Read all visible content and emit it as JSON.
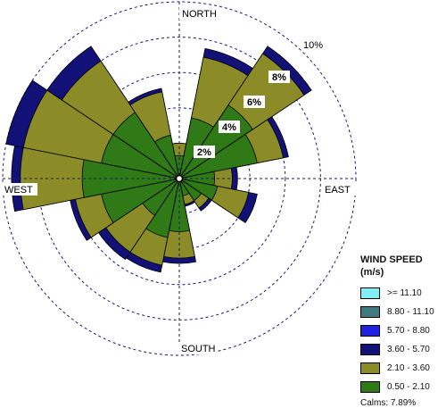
{
  "chart_data": {
    "type": "windrose",
    "ring_labels": [
      "2%",
      "4%",
      "6%",
      "8%",
      "10%"
    ],
    "ring_values": [
      2,
      4,
      6,
      8,
      10
    ],
    "direction_labels": {
      "north": "NORTH",
      "east": "EAST",
      "south": "SOUTH",
      "west": "WEST"
    },
    "legend": {
      "title": "WIND SPEED",
      "units": "(m/s)",
      "classes": [
        {
          "label": ">= 11.10",
          "color": "#7ff0f5"
        },
        {
          "label": "8.80 - 11.10",
          "color": "#3e7a7e"
        },
        {
          "label": "5.70 - 8.80",
          "color": "#2020e0"
        },
        {
          "label": "3.60 - 5.70",
          "color": "#111177"
        },
        {
          "label": "2.10 - 3.60",
          "color": "#8b8b28"
        },
        {
          "label": "0.50 - 2.10",
          "color": "#2f7a16"
        }
      ]
    },
    "calms": "Calms: 7.89%",
    "sector_width_deg": 22.5,
    "sectors": [
      {
        "dir": "N",
        "angle": 0,
        "cum": [
          1.3,
          2.0,
          2.0
        ]
      },
      {
        "dir": "NNE",
        "angle": 22.5,
        "cum": [
          3.5,
          7.0,
          7.5
        ]
      },
      {
        "dir": "NE",
        "angle": 45,
        "cum": [
          5.0,
          8.5,
          9.0
        ]
      },
      {
        "dir": "ENE",
        "angle": 67.5,
        "cum": [
          4.5,
          6.0,
          6.3
        ]
      },
      {
        "dir": "E",
        "angle": 90,
        "cum": [
          2.0,
          3.0,
          3.3
        ]
      },
      {
        "dir": "ESE",
        "angle": 112.5,
        "cum": [
          2.2,
          4.0,
          4.5
        ]
      },
      {
        "dir": "SE",
        "angle": 135,
        "cum": [
          1.5,
          2.0,
          2.2
        ]
      },
      {
        "dir": "SSE",
        "angle": 157.5,
        "cum": [
          1.0,
          1.5,
          1.6
        ]
      },
      {
        "dir": "S",
        "angle": 180,
        "cum": [
          3.0,
          4.5,
          4.8
        ]
      },
      {
        "dir": "SSW",
        "angle": 202.5,
        "cum": [
          3.4,
          5.0,
          5.4
        ]
      },
      {
        "dir": "SW",
        "angle": 225,
        "cum": [
          2.5,
          5.0,
          5.5
        ]
      },
      {
        "dir": "WSW",
        "angle": 247.5,
        "cum": [
          4.5,
          6.0,
          6.3
        ]
      },
      {
        "dir": "W",
        "angle": 270,
        "cum": [
          5.5,
          9.0,
          9.5
        ]
      },
      {
        "dir": "WNW",
        "angle": 292.5,
        "cum": [
          4.5,
          9.0,
          10.0
        ]
      },
      {
        "dir": "NW",
        "angle": 315,
        "cum": [
          4.5,
          8.0,
          9.0
        ]
      },
      {
        "dir": "NNW",
        "angle": 337.5,
        "cum": [
          2.5,
          5.0,
          5.2
        ]
      }
    ]
  }
}
